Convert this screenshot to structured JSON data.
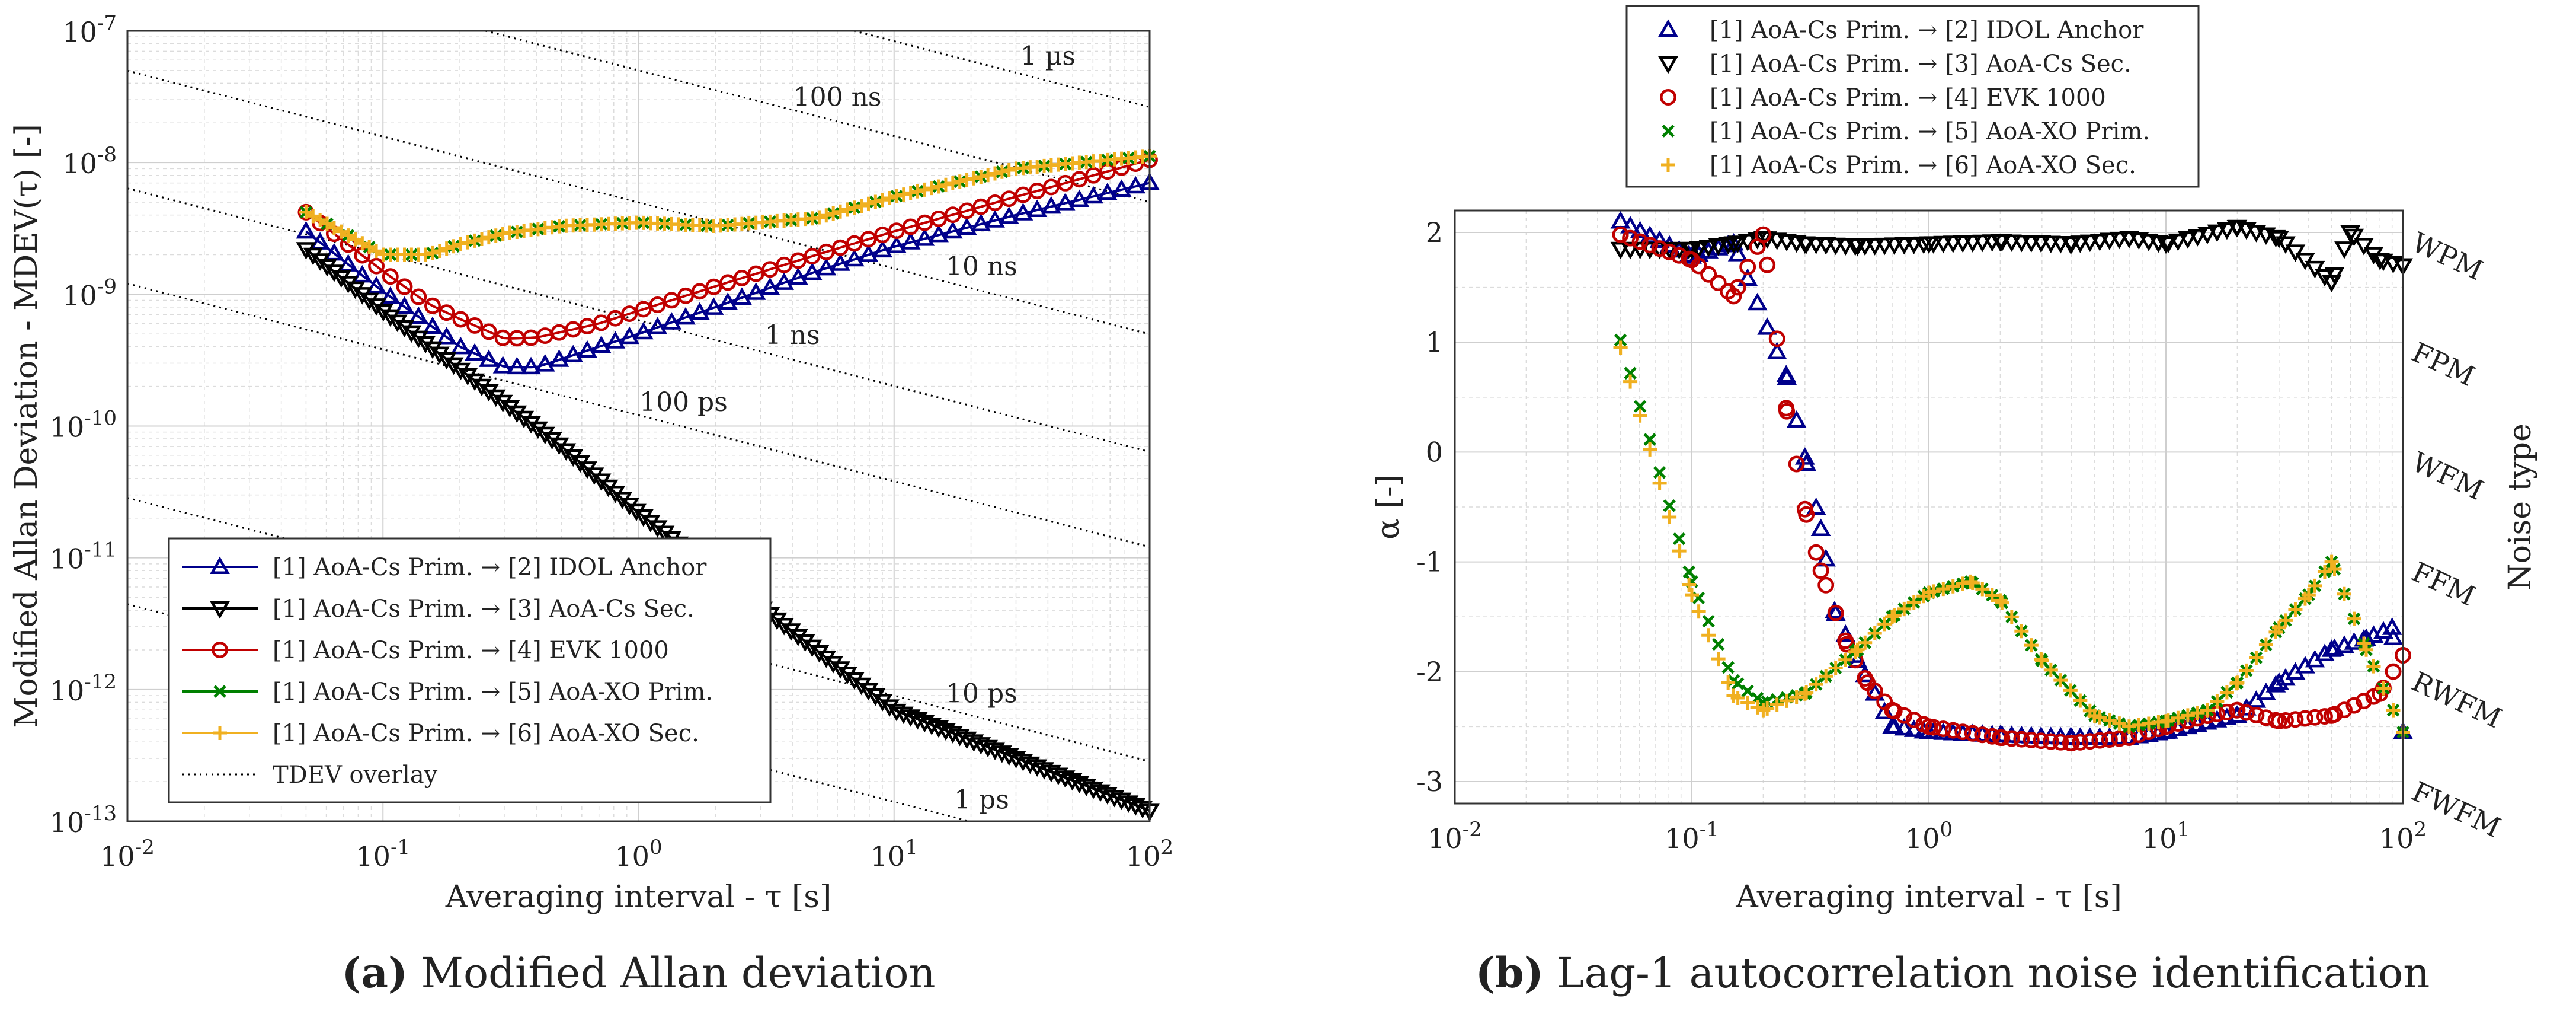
{
  "chart_data": [
    {
      "type": "line",
      "xlabel": "Averaging interval - τ [s]",
      "ylabel": "Modified Allan Deviation - MDEV(τ) [-]",
      "caption_bold": "(a)",
      "caption": " Modified Allan deviation",
      "xscale": "log",
      "yscale": "log",
      "xlim": [
        0.01,
        100
      ],
      "ylim": [
        1e-13,
        1e-07
      ],
      "x_ticks": [
        "10^-2",
        "10^-1",
        "10^0",
        "10^1",
        "10^2"
      ],
      "y_ticks": [
        "10^-13",
        "10^-12",
        "10^-11",
        "10^-10",
        "10^-9",
        "10^-8",
        "10^-7"
      ],
      "grid": true,
      "legend": {
        "placement": "bottom-left"
      },
      "series": [
        {
          "name": "[1] AoA-Cs Prim. → [2] IDOL Anchor",
          "color": "#00008b",
          "marker": "triangle-up",
          "x": [
            0.05,
            0.1,
            0.15,
            0.2,
            0.3,
            0.4,
            0.7,
            1,
            2,
            5,
            10,
            30,
            100
          ],
          "y": [
            3e-09,
            1.05e-09,
            6e-10,
            4e-10,
            2.8e-10,
            2.8e-10,
            4e-10,
            5e-10,
            8e-10,
            1.5e-09,
            2.3e-09,
            4e-09,
            7e-09
          ]
        },
        {
          "name": "[1] AoA-Cs Prim. → [3] AoA-Cs Sec.",
          "color": "#000000",
          "marker": "triangle-down",
          "x": [
            0.05,
            0.1,
            0.2,
            0.5,
            1,
            10,
            100
          ],
          "y": [
            2.2e-09,
            7.5e-10,
            2.7e-10,
            7e-11,
            2.2e-11,
            7e-13,
            1.2e-13
          ]
        },
        {
          "name": "[1] AoA-Cs Prim. → [4] EVK 1000",
          "color": "#c00000",
          "marker": "circle",
          "x": [
            0.05,
            0.1,
            0.15,
            0.2,
            0.3,
            0.4,
            0.7,
            1,
            2,
            5,
            10,
            30,
            100
          ],
          "y": [
            4.2e-09,
            1.5e-09,
            8.5e-10,
            6.5e-10,
            4.6e-10,
            4.7e-10,
            6e-10,
            7.5e-10,
            1.15e-09,
            2e-09,
            3e-09,
            5.5e-09,
            1.05e-08
          ]
        },
        {
          "name": "[1] AoA-Cs Prim. → [5] AoA-XO Prim.",
          "color": "#008000",
          "marker": "x",
          "x": [
            0.05,
            0.1,
            0.15,
            0.2,
            0.3,
            0.5,
            1,
            2,
            5,
            10,
            30,
            100
          ],
          "y": [
            4.2e-09,
            2e-09,
            2e-09,
            2.4e-09,
            2.9e-09,
            3.3e-09,
            3.5e-09,
            3.3e-09,
            3.8e-09,
            5.5e-09,
            9e-09,
            1.12e-08
          ]
        },
        {
          "name": "[1] AoA-Cs Prim. → [6] AoA-XO Sec.",
          "color": "#f0b020",
          "marker": "plus",
          "x": [
            0.05,
            0.1,
            0.15,
            0.2,
            0.3,
            0.5,
            1,
            2,
            5,
            10,
            30,
            100
          ],
          "y": [
            4.2e-09,
            2e-09,
            2e-09,
            2.4e-09,
            2.9e-09,
            3.3e-09,
            3.5e-09,
            3.3e-09,
            3.8e-09,
            5.5e-09,
            9e-09,
            1.12e-08
          ]
        },
        {
          "name": "TDEV overlay",
          "color": "#000000",
          "style": "dotted"
        }
      ],
      "overlay_labels": [
        "1 µs",
        "100 ns",
        "10 ns",
        "1 ns",
        "100 ps",
        "10 ps",
        "1 ps"
      ],
      "overlay_label_pos": [
        [
          40,
          5.5e-08
        ],
        [
          6,
          2.7e-08
        ],
        [
          22,
          1.4e-09
        ],
        [
          4,
          4.2e-10
        ],
        [
          1.5,
          1.3e-10
        ],
        [
          22,
          8e-13
        ],
        [
          22,
          1.25e-13
        ]
      ]
    },
    {
      "type": "scatter",
      "xlabel": "Averaging interval - τ [s]",
      "ylabel": "α [-]",
      "y2label": "Noise type",
      "caption_bold": "(b)",
      "caption": " Lag-1 autocorrelation noise identification",
      "xscale": "log",
      "xlim": [
        0.01,
        100
      ],
      "ylim": [
        -3.2,
        2.2
      ],
      "x_ticks": [
        "10^-2",
        "10^-1",
        "10^0",
        "10^1",
        "10^2"
      ],
      "y_ticks": [
        "-3",
        "-2",
        "-1",
        "0",
        "1",
        "2"
      ],
      "noise_types": [
        "WPM",
        "FPM",
        "WFM",
        "FFM",
        "RWFM",
        "FWFM"
      ],
      "grid": true,
      "legend": {
        "placement": "top-outside"
      },
      "series": [
        {
          "name": "[1] AoA-Cs Prim. → [2] IDOL Anchor",
          "color": "#00008b",
          "marker": "triangle-up",
          "x": [
            0.05,
            0.1,
            0.15,
            0.25,
            0.3,
            0.35,
            0.4,
            0.5,
            0.7,
            1,
            2,
            4,
            7,
            10,
            20,
            30,
            50,
            70,
            90,
            100
          ],
          "y": [
            2.1,
            1.78,
            1.9,
            0.7,
            -0.05,
            -0.7,
            -1.45,
            -1.9,
            -2.5,
            -2.55,
            -2.58,
            -2.6,
            -2.6,
            -2.55,
            -2.4,
            -2.1,
            -1.8,
            -1.7,
            -1.6,
            -2.55
          ]
        },
        {
          "name": "[1] AoA-Cs Prim. → [3] AoA-Cs Sec.",
          "color": "#000000",
          "marker": "triangle-down",
          "x": [
            0.05,
            0.1,
            0.15,
            0.2,
            0.3,
            0.5,
            1,
            2,
            4,
            7,
            10,
            20,
            30,
            50,
            60,
            80,
            100
          ],
          "y": [
            1.85,
            1.85,
            1.9,
            1.95,
            1.9,
            1.88,
            1.9,
            1.92,
            1.9,
            1.95,
            1.9,
            2.05,
            1.95,
            1.55,
            2.0,
            1.75,
            1.7
          ]
        },
        {
          "name": "[1] AoA-Cs Prim. → [4] EVK 1000",
          "color": "#c00000",
          "marker": "circle",
          "x": [
            0.05,
            0.1,
            0.15,
            0.2,
            0.25,
            0.3,
            0.35,
            0.45,
            0.55,
            0.7,
            1,
            2,
            4,
            7,
            10,
            15,
            20,
            30,
            50,
            80,
            100
          ],
          "y": [
            1.98,
            1.75,
            1.42,
            1.98,
            0.4,
            -0.52,
            -1.08,
            -1.75,
            -2.1,
            -2.35,
            -2.5,
            -2.6,
            -2.65,
            -2.6,
            -2.5,
            -2.4,
            -2.35,
            -2.45,
            -2.4,
            -2.2,
            -1.85
          ]
        },
        {
          "name": "[1] AoA-Cs Prim. → [5] AoA-XO Prim.",
          "color": "#008000",
          "marker": "x",
          "x": [
            0.05,
            0.1,
            0.15,
            0.2,
            0.3,
            0.5,
            0.7,
            1,
            1.5,
            2,
            3,
            5,
            7,
            10,
            15,
            20,
            30,
            40,
            50,
            70,
            100
          ],
          "y": [
            1.02,
            -1.18,
            -2.08,
            -2.28,
            -2.2,
            -1.8,
            -1.5,
            -1.28,
            -1.18,
            -1.35,
            -1.9,
            -2.4,
            -2.5,
            -2.45,
            -2.35,
            -2.1,
            -1.6,
            -1.3,
            -1.0,
            -1.8,
            -2.55
          ]
        },
        {
          "name": "[1] AoA-Cs Prim. → [6] AoA-XO Sec.",
          "color": "#f0b020",
          "marker": "plus",
          "x": [
            0.05,
            0.1,
            0.15,
            0.2,
            0.3,
            0.5,
            0.7,
            1,
            1.5,
            2,
            3,
            5,
            7,
            10,
            15,
            20,
            30,
            40,
            50,
            70,
            100
          ],
          "y": [
            0.95,
            -1.3,
            -2.22,
            -2.35,
            -2.2,
            -1.8,
            -1.5,
            -1.28,
            -1.18,
            -1.35,
            -1.9,
            -2.4,
            -2.5,
            -2.45,
            -2.35,
            -2.1,
            -1.6,
            -1.3,
            -1.0,
            -1.8,
            -2.55
          ]
        }
      ]
    }
  ]
}
